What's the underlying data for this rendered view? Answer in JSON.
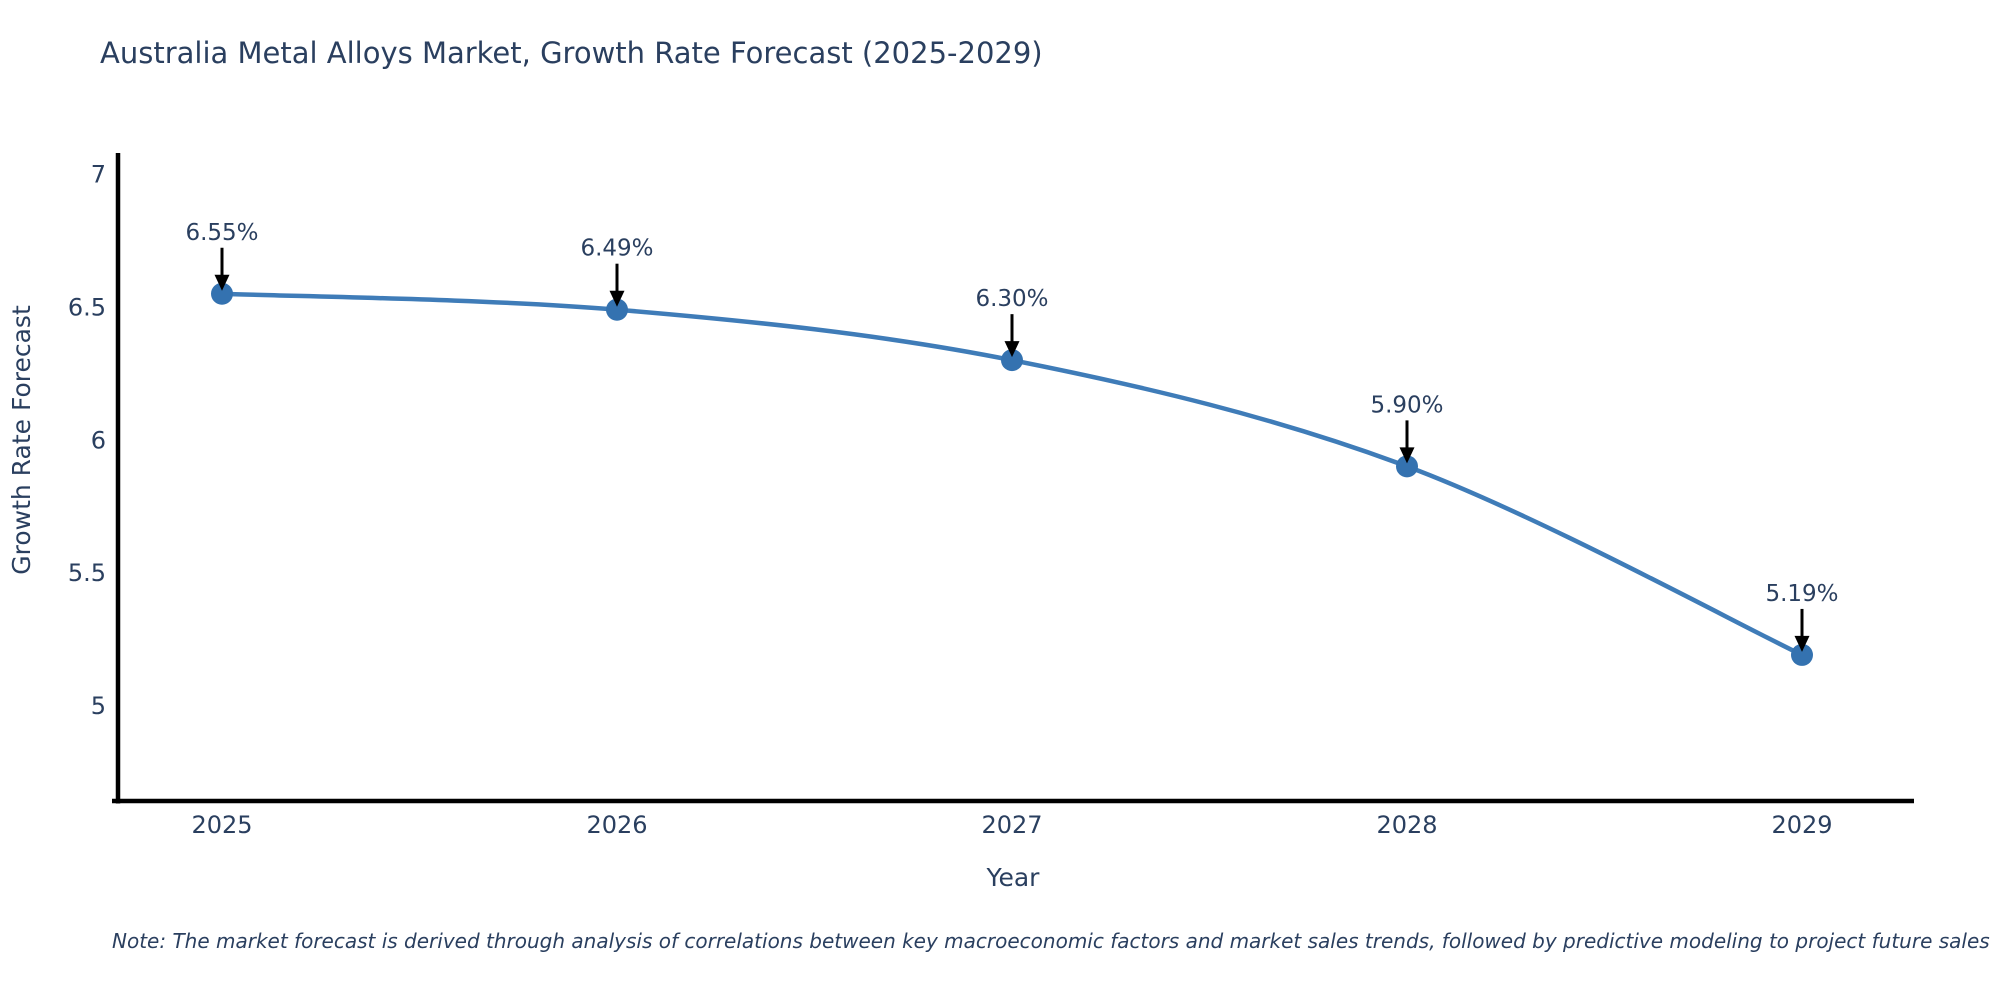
{
  "title": "Australia Metal Alloys Market, Growth Rate Forecast (2025-2029)",
  "note": "Note: The market forecast is derived through analysis of correlations between key macroeconomic factors and market sales trends, followed by predictive modeling to project future sales",
  "chart_data": {
    "type": "line",
    "title": "Australia Metal Alloys Market, Growth Rate Forecast (2025-2029)",
    "xlabel": "Year",
    "ylabel": "Growth Rate Forecast",
    "x": [
      2025,
      2026,
      2027,
      2028,
      2029
    ],
    "y": [
      6.55,
      6.49,
      6.3,
      5.9,
      5.19
    ],
    "point_labels": [
      "6.55%",
      "6.49%",
      "6.30%",
      "5.90%",
      "5.19%"
    ],
    "xticks": [
      "2025",
      "2026",
      "2027",
      "2028",
      "2029"
    ],
    "yticks": [
      "7",
      "6.5",
      "6",
      "5.5",
      "5"
    ],
    "ytick_values": [
      7,
      6.5,
      6,
      5.5,
      5
    ],
    "ylim": [
      4.64,
      7.08
    ],
    "grid": false,
    "legend": "none",
    "line_shape": "spline",
    "annotation_arrows": true,
    "colors": {
      "line": "#3f7cb8",
      "marker": "#3472b0",
      "axis": "#000000",
      "text": "#2a3f5f",
      "arrow": "#000000",
      "background": "#ffffff"
    }
  }
}
